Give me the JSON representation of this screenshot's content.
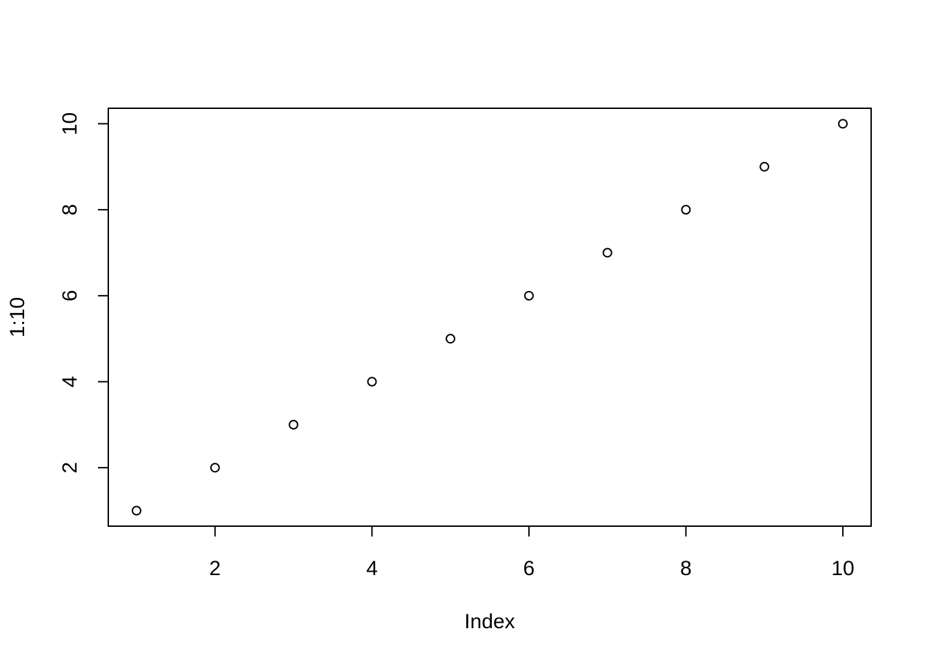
{
  "chart_data": {
    "type": "scatter",
    "title": "",
    "xlabel": "Index",
    "ylabel": "1:10",
    "x": [
      1,
      2,
      3,
      4,
      5,
      6,
      7,
      8,
      9,
      10
    ],
    "y": [
      1,
      2,
      3,
      4,
      5,
      6,
      7,
      8,
      9,
      10
    ],
    "xlim": [
      0.64,
      10.36
    ],
    "ylim": [
      0.64,
      10.36
    ],
    "xticks": [
      2,
      4,
      6,
      8,
      10
    ],
    "yticks": [
      2,
      4,
      6,
      8,
      10
    ],
    "xtick_labels": [
      "2",
      "4",
      "6",
      "8",
      "10"
    ],
    "ytick_labels": [
      "2",
      "4",
      "6",
      "8",
      "10"
    ],
    "grid": false,
    "marker": "open-circle",
    "color": "#000000"
  }
}
